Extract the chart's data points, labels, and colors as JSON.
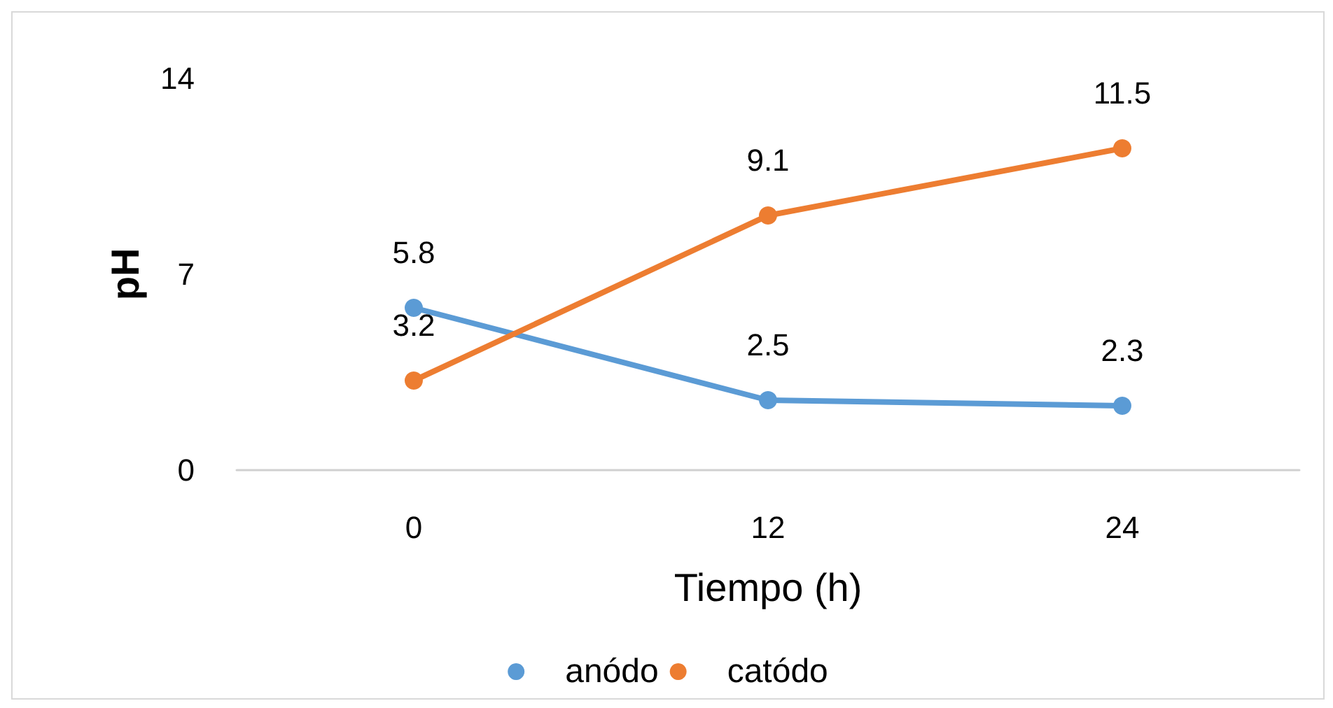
{
  "chart_data": {
    "type": "line",
    "xlabel": "Tiempo (h)",
    "ylabel": "pH",
    "categories": [
      "0",
      "12",
      "24"
    ],
    "series": [
      {
        "name": "anódo",
        "color": "#5b9bd5",
        "values": [
          5.8,
          2.5,
          2.3
        ]
      },
      {
        "name": "catódo",
        "color": "#ed7d31",
        "values": [
          3.2,
          9.1,
          11.5
        ]
      }
    ],
    "ylim": [
      0,
      14
    ],
    "yticks": [
      0,
      7,
      14
    ],
    "grid": false,
    "legend": "bottom",
    "marker": "circle",
    "line_style": "solid",
    "data_labels": true
  }
}
